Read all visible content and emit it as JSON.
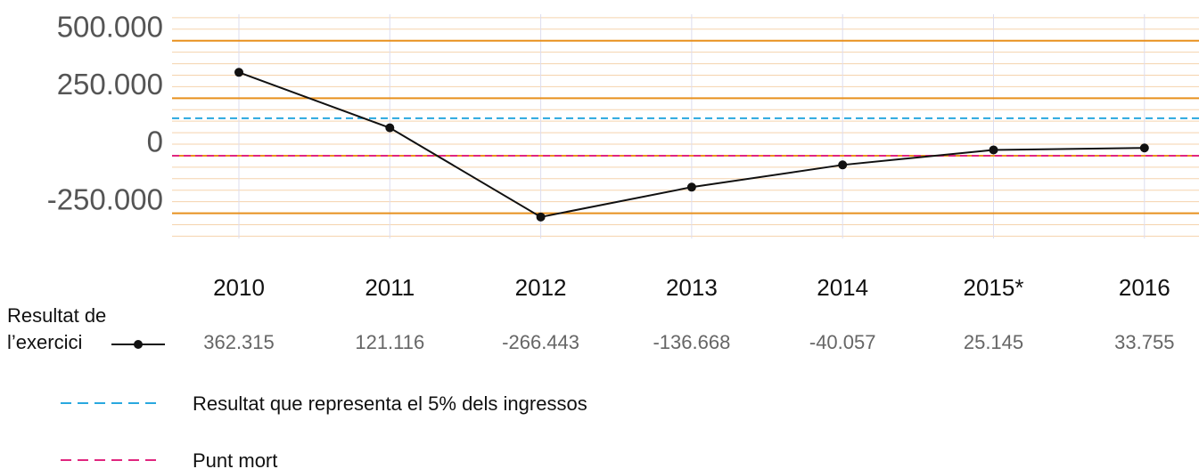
{
  "chart_data": {
    "type": "line",
    "categories": [
      "2010",
      "2011",
      "2012",
      "2013",
      "2014",
      "2015*",
      "2016"
    ],
    "series": [
      {
        "name": "Resultat de l’exercici",
        "color": "#111111",
        "values": [
          362315,
          121116,
          -266443,
          -136668,
          -40057,
          25145,
          33755
        ],
        "value_labels": [
          "362.315",
          "121.116",
          "-266.443",
          "-136.668",
          "-40.057",
          "25.145",
          "33.755"
        ]
      }
    ],
    "ylim": [
      -360000,
      615000
    ],
    "yticks": [
      {
        "value": -250000,
        "label": "-250.000"
      },
      0,
      {
        "value": 250000,
        "label": "250.000"
      },
      {
        "value": 500000,
        "label": "500.000"
      }
    ],
    "minor_yticks": [
      -350000,
      -300000,
      -200000,
      -150000,
      -100000,
      -50000,
      50000,
      100000,
      150000,
      200000,
      300000,
      350000,
      400000,
      450000,
      550000,
      600000
    ],
    "grid_color": "#e8901e",
    "minor_grid_color": "#f5d3ad",
    "reference_lines": [
      {
        "name": "Resultat que representa el 5% dels ingressos",
        "value": 163000,
        "color": "#29a8df"
      },
      {
        "name": "Punt mort",
        "value": 0,
        "color": "#e0267f"
      }
    ]
  }
}
